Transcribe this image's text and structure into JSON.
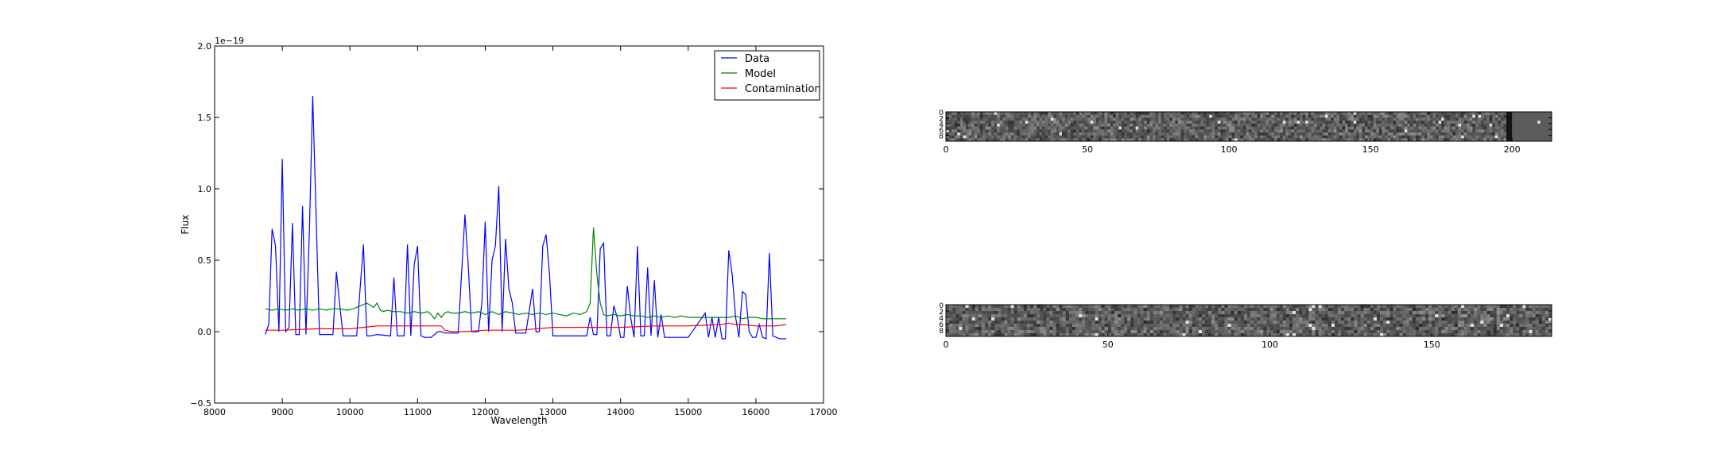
{
  "chart_data": [
    {
      "type": "line",
      "title": "",
      "xlabel": "Wavelength",
      "ylabel": "Flux",
      "offset_text": "1e−19",
      "xlim": [
        8000,
        17000
      ],
      "ylim": [
        -0.5,
        2.0
      ],
      "xticks": [
        8000,
        9000,
        10000,
        11000,
        12000,
        13000,
        14000,
        15000,
        16000,
        17000
      ],
      "yticks": [
        -0.5,
        0.0,
        0.5,
        1.0,
        1.5,
        2.0
      ],
      "xtick_labels": [
        "8000",
        "9000",
        "10000",
        "11000",
        "12000",
        "13000",
        "14000",
        "15000",
        "16000",
        "17000"
      ],
      "ytick_labels": [
        "−0.5",
        "0.0",
        "0.5",
        "1.0",
        "1.5",
        "2.0"
      ],
      "legend_position": "top-right",
      "series": [
        {
          "name": "Data",
          "color": "#0000ff",
          "x": [
            8750,
            8800,
            8850,
            8900,
            8950,
            9000,
            9050,
            9100,
            9150,
            9200,
            9250,
            9300,
            9350,
            9400,
            9450,
            9500,
            9550,
            9600,
            9650,
            9700,
            9750,
            9800,
            9850,
            9900,
            10000,
            10100,
            10150,
            10200,
            10250,
            10300,
            10400,
            10600,
            10650,
            10700,
            10750,
            10800,
            10850,
            10900,
            10950,
            11000,
            11050,
            11100,
            11150,
            11200,
            11300,
            11350,
            11400,
            11500,
            11600,
            11700,
            11750,
            11800,
            11850,
            11900,
            11950,
            12000,
            12050,
            12100,
            12150,
            12200,
            12250,
            12300,
            12350,
            12400,
            12450,
            12500,
            12600,
            12700,
            12750,
            12800,
            12850,
            12900,
            12950,
            13000,
            13050,
            13100,
            13500,
            13550,
            13600,
            13650,
            13700,
            13750,
            13800,
            13850,
            13900,
            13950,
            14000,
            14050,
            14100,
            14150,
            14200,
            14250,
            14300,
            14350,
            14400,
            14450,
            14500,
            14550,
            14600,
            14650,
            14700,
            14750,
            14800,
            14850,
            14900,
            15000,
            15250,
            15300,
            15350,
            15400,
            15450,
            15500,
            15550,
            15600,
            15650,
            15700,
            15750,
            15800,
            15850,
            15900,
            15950,
            16000,
            16050,
            16100,
            16150,
            16200,
            16250,
            16300,
            16350,
            16400,
            16450
          ],
          "y": [
            -0.02,
            0.05,
            0.72,
            0.6,
            0.0,
            1.21,
            0.0,
            0.03,
            0.76,
            -0.02,
            -0.02,
            0.88,
            -0.02,
            0.7,
            1.65,
            0.8,
            -0.02,
            -0.02,
            -0.02,
            -0.02,
            -0.02,
            0.42,
            0.18,
            -0.03,
            -0.03,
            -0.03,
            0.3,
            0.61,
            -0.03,
            -0.03,
            -0.02,
            -0.03,
            0.38,
            -0.03,
            -0.03,
            -0.03,
            0.61,
            -0.03,
            0.47,
            0.6,
            -0.03,
            -0.04,
            -0.04,
            -0.04,
            0.0,
            0.0,
            -0.01,
            -0.01,
            -0.01,
            0.82,
            0.45,
            0.0,
            0.0,
            0.0,
            0.2,
            0.77,
            0.0,
            0.5,
            0.6,
            1.02,
            0.0,
            0.65,
            0.3,
            0.2,
            -0.01,
            -0.01,
            -0.01,
            0.3,
            0.0,
            0.0,
            0.6,
            0.68,
            0.4,
            -0.03,
            -0.03,
            -0.03,
            -0.03,
            0.1,
            -0.02,
            -0.02,
            0.58,
            0.62,
            -0.03,
            -0.03,
            0.18,
            0.1,
            -0.04,
            -0.04,
            0.32,
            0.1,
            -0.04,
            0.6,
            -0.03,
            -0.03,
            0.45,
            -0.03,
            0.36,
            -0.04,
            0.12,
            -0.04,
            -0.04,
            -0.04,
            -0.04,
            -0.04,
            -0.04,
            -0.04,
            0.13,
            -0.04,
            0.1,
            -0.04,
            0.1,
            -0.05,
            -0.05,
            0.57,
            0.4,
            0.1,
            -0.04,
            0.28,
            0.26,
            0.0,
            -0.04,
            -0.04,
            0.05,
            -0.04,
            -0.05,
            0.55,
            -0.03,
            -0.04,
            -0.05,
            -0.05,
            -0.05
          ]
        },
        {
          "name": "Model",
          "color": "#008000",
          "x": [
            8750,
            8850,
            8950,
            9050,
            9150,
            9250,
            9350,
            9450,
            9550,
            9650,
            9750,
            9850,
            9950,
            10050,
            10150,
            10250,
            10350,
            10400,
            10450,
            10500,
            10550,
            10650,
            10750,
            10850,
            10950,
            11050,
            11150,
            11200,
            11250,
            11300,
            11350,
            11400,
            11450,
            11500,
            11600,
            11700,
            11800,
            11900,
            12000,
            12100,
            12200,
            12300,
            12400,
            12500,
            12600,
            12700,
            12800,
            12900,
            13000,
            13100,
            13200,
            13300,
            13400,
            13500,
            13550,
            13600,
            13650,
            13700,
            13750,
            13800,
            13900,
            14000,
            14100,
            14200,
            14300,
            14400,
            14500,
            14600,
            14700,
            14800,
            14900,
            15000,
            15100,
            15200,
            15300,
            15400,
            15500,
            15600,
            15700,
            15800,
            15900,
            16000,
            16100,
            16200,
            16300,
            16450
          ],
          "y": [
            0.16,
            0.15,
            0.16,
            0.15,
            0.16,
            0.15,
            0.16,
            0.15,
            0.16,
            0.15,
            0.16,
            0.16,
            0.15,
            0.16,
            0.18,
            0.2,
            0.17,
            0.2,
            0.15,
            0.14,
            0.15,
            0.14,
            0.14,
            0.13,
            0.14,
            0.13,
            0.14,
            0.12,
            0.09,
            0.13,
            0.1,
            0.13,
            0.14,
            0.13,
            0.13,
            0.14,
            0.13,
            0.14,
            0.12,
            0.14,
            0.12,
            0.14,
            0.13,
            0.12,
            0.13,
            0.12,
            0.13,
            0.12,
            0.13,
            0.12,
            0.11,
            0.13,
            0.12,
            0.14,
            0.2,
            0.73,
            0.4,
            0.2,
            0.12,
            0.11,
            0.12,
            0.11,
            0.12,
            0.11,
            0.11,
            0.1,
            0.11,
            0.1,
            0.11,
            0.1,
            0.11,
            0.1,
            0.1,
            0.1,
            0.1,
            0.1,
            0.1,
            0.1,
            0.11,
            0.09,
            0.1,
            0.1,
            0.09,
            0.09,
            0.09,
            0.09
          ]
        },
        {
          "name": "Contamination",
          "color": "#ff0000",
          "x": [
            8750,
            9000,
            9500,
            10000,
            10200,
            10400,
            10600,
            10800,
            11000,
            11200,
            11350,
            11400,
            11500,
            11700,
            12000,
            12500,
            13000,
            13500,
            14000,
            14500,
            15000,
            15500,
            15600,
            15700,
            15800,
            16000,
            16200,
            16300,
            16450
          ],
          "y": [
            0.01,
            0.01,
            0.02,
            0.02,
            0.03,
            0.04,
            0.04,
            0.04,
            0.04,
            0.04,
            0.04,
            0.01,
            0.0,
            0.0,
            0.01,
            0.01,
            0.03,
            0.03,
            0.03,
            0.04,
            0.04,
            0.05,
            0.06,
            0.05,
            0.05,
            0.04,
            0.04,
            0.04,
            0.05
          ]
        }
      ]
    },
    {
      "type": "heatmap",
      "title": "",
      "xticks": [
        0,
        50,
        100,
        150,
        200
      ],
      "xtick_labels": [
        "0",
        "50",
        "100",
        "150",
        "200"
      ],
      "yticks": [
        0,
        2,
        4,
        6,
        8
      ],
      "ytick_labels": [
        "0",
        "2",
        "4",
        "6",
        "8"
      ],
      "xlim": [
        0,
        214
      ],
      "ylim": [
        0,
        10
      ],
      "colormap": "gray"
    },
    {
      "type": "heatmap",
      "title": "",
      "xticks": [
        0,
        50,
        100,
        150
      ],
      "xtick_labels": [
        "0",
        "50",
        "100",
        "150"
      ],
      "yticks": [
        0,
        2,
        4,
        6,
        8
      ],
      "ytick_labels": [
        "0",
        "2",
        "4",
        "6",
        "8"
      ],
      "xlim": [
        0,
        187
      ],
      "ylim": [
        0,
        10
      ],
      "colormap": "gray"
    }
  ]
}
